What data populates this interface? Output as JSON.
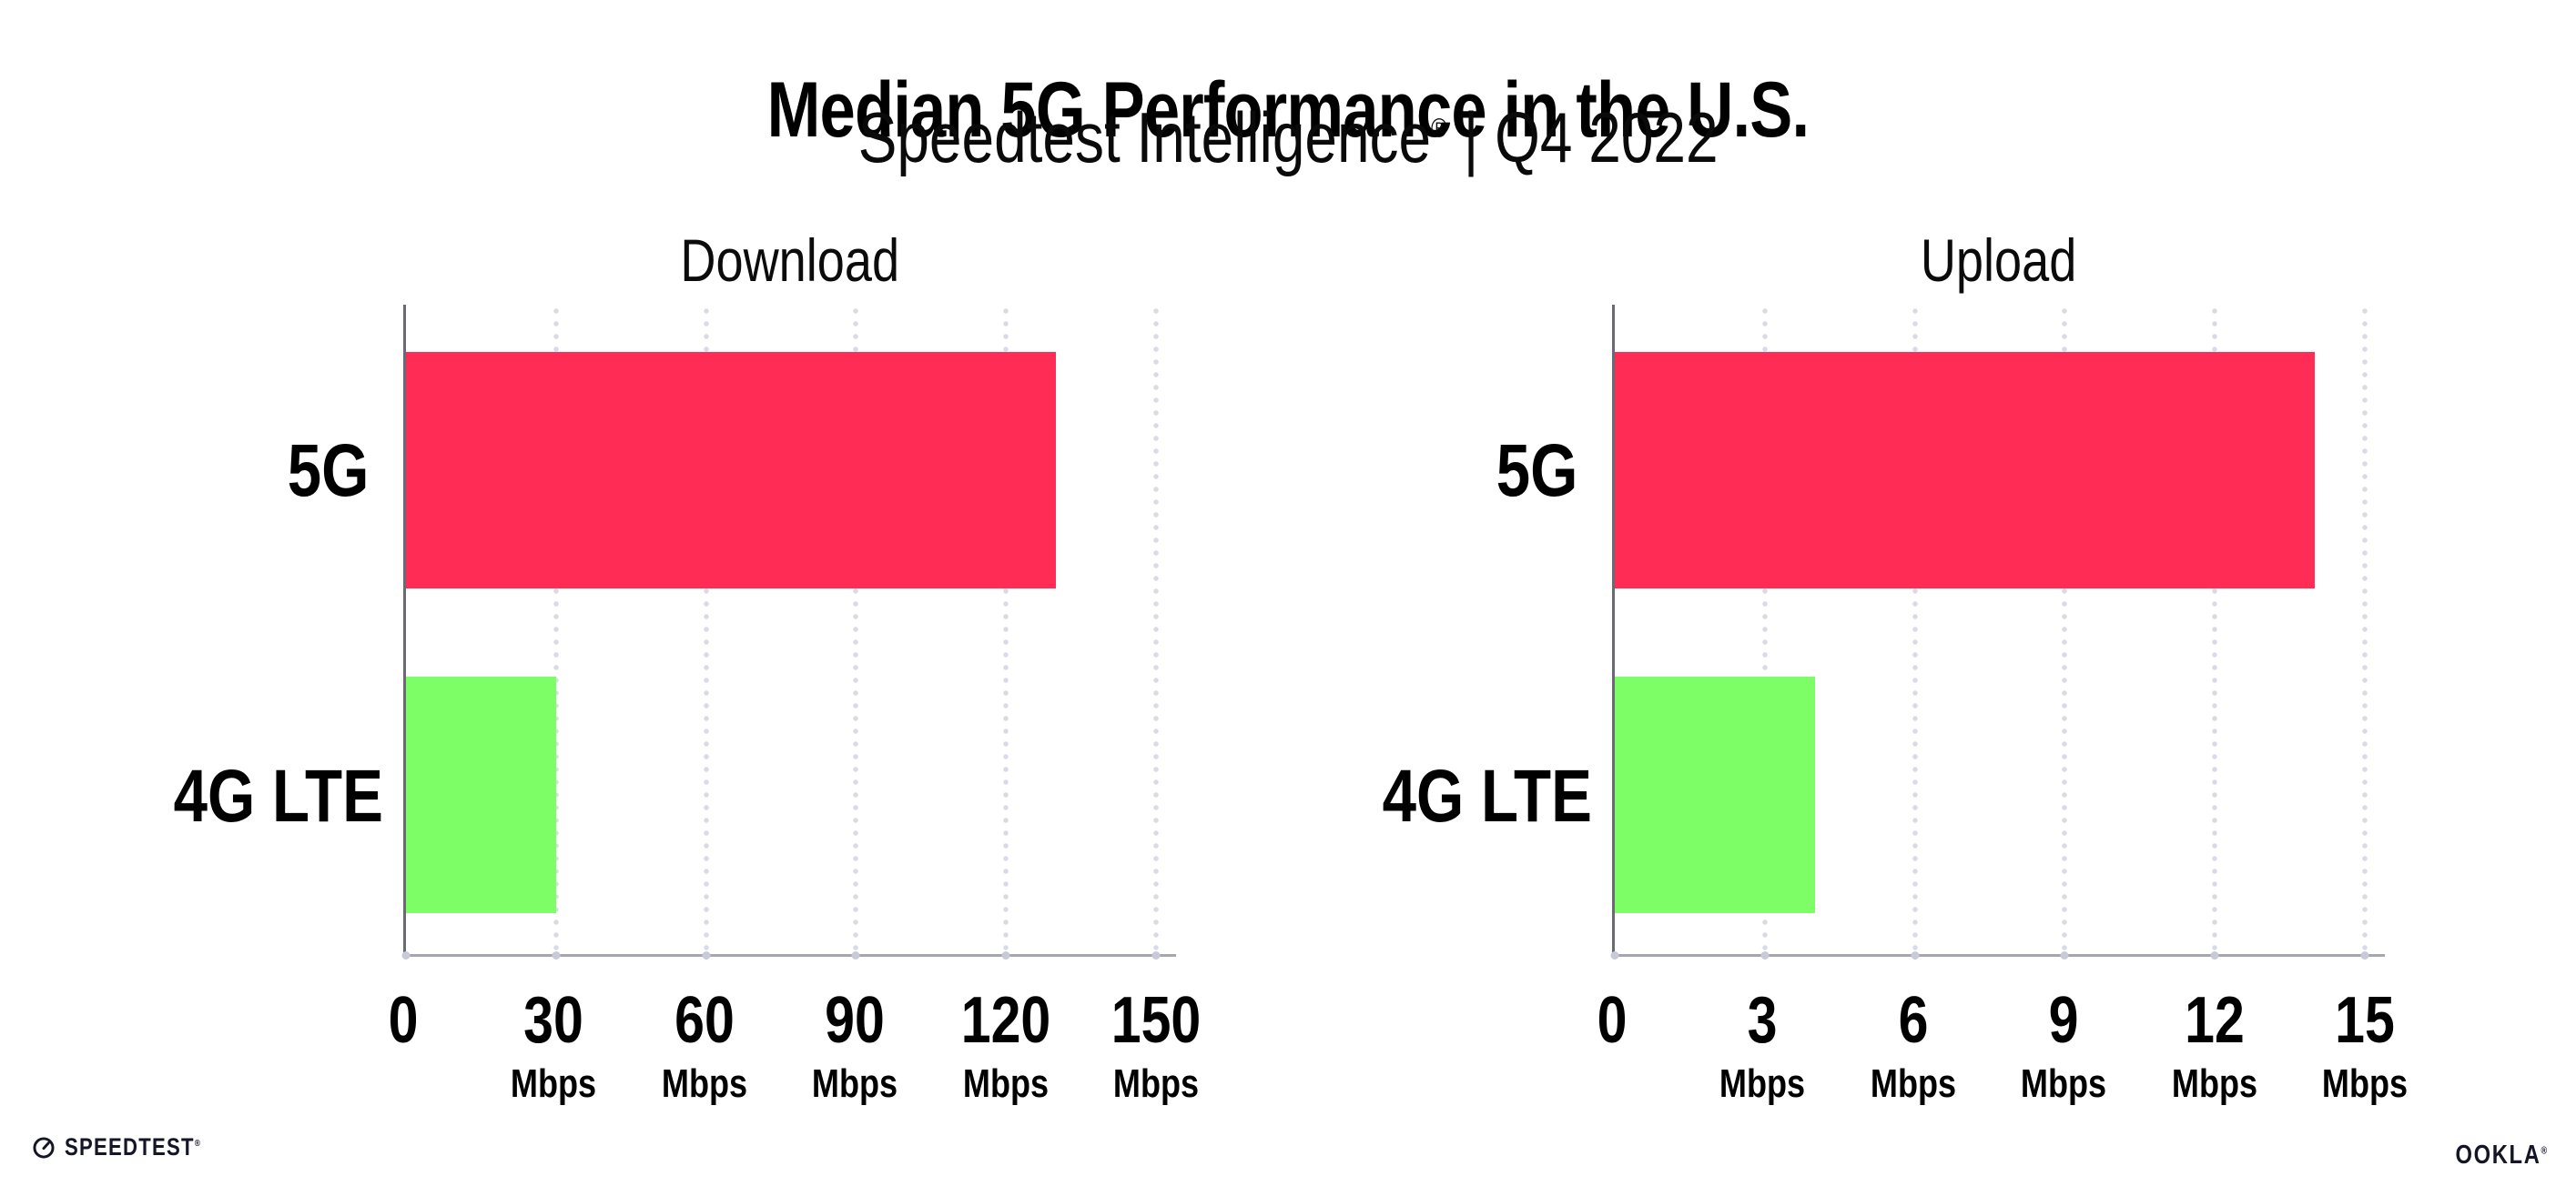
{
  "page": {
    "background": "#ffffff"
  },
  "header": {
    "title": "Median 5G Performance in the U.S.",
    "subtitle_brand": "Speedtest Intelligence",
    "subtitle_reg": "®",
    "subtitle_rest": " | Q4 2022"
  },
  "colors": {
    "bar_5g": "#ff2d55",
    "bar_4g_lte": "#7dfe66",
    "gridline_dots": "#d9dae6",
    "y_axis_spine": "#6a6a74",
    "x_axis_line": "#a6a6ae",
    "axis_tick_dot": "#c9cad8",
    "text": "#000000"
  },
  "chart_data": [
    {
      "type": "bar",
      "orientation": "horizontal",
      "title": "Download",
      "categories": [
        "5G",
        "4G LTE"
      ],
      "values": [
        130,
        30
      ],
      "unit": "Mbps",
      "xticks": [
        0,
        30,
        60,
        90,
        120,
        150
      ],
      "xlim": [
        0,
        154
      ],
      "grid": "dotted-vertical",
      "legend": "none",
      "bar_colors": [
        "#ff2d55",
        "#7dfe66"
      ]
    },
    {
      "type": "bar",
      "orientation": "horizontal",
      "title": "Upload",
      "categories": [
        "5G",
        "4G LTE"
      ],
      "values": [
        14,
        4
      ],
      "unit": "Mbps",
      "xticks": [
        0,
        3,
        6,
        9,
        12,
        15
      ],
      "xlim": [
        0,
        15.4
      ],
      "grid": "dotted-vertical",
      "legend": "none",
      "bar_colors": [
        "#ff2d55",
        "#7dfe66"
      ]
    }
  ],
  "footer": {
    "speedtest_logo": "SPEEDTEST",
    "speedtest_reg": "®",
    "speedtest_icon": "speedtest-gauge-icon",
    "ookla_logo": "OOKLA",
    "ookla_reg": "®"
  }
}
